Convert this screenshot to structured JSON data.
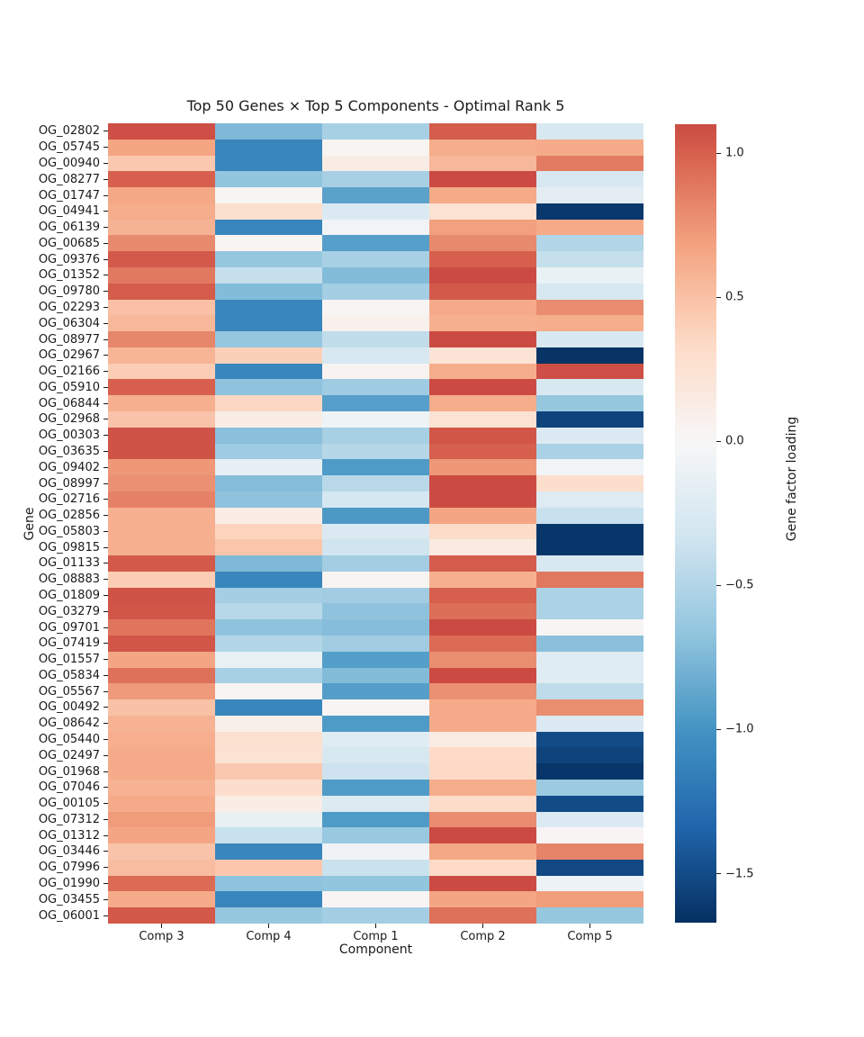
{
  "chart_data": {
    "type": "heatmap",
    "title": "Top 50 Genes × Top 5 Components - Optimal Rank 5",
    "xlabel": "Component",
    "ylabel": "Gene",
    "legend_position": "right-colorbar",
    "grid": false,
    "columns": [
      "Comp 3",
      "Comp 4",
      "Comp 1",
      "Comp 2",
      "Comp 5"
    ],
    "rows": [
      "OG_02802",
      "OG_05745",
      "OG_00940",
      "OG_08277",
      "OG_01747",
      "OG_04941",
      "OG_06139",
      "OG_00685",
      "OG_09376",
      "OG_01352",
      "OG_09780",
      "OG_02293",
      "OG_06304",
      "OG_08977",
      "OG_02967",
      "OG_02166",
      "OG_05910",
      "OG_06844",
      "OG_02968",
      "OG_00303",
      "OG_03635",
      "OG_09402",
      "OG_08997",
      "OG_02716",
      "OG_02856",
      "OG_05803",
      "OG_09815",
      "OG_01133",
      "OG_08883",
      "OG_01809",
      "OG_03279",
      "OG_09701",
      "OG_07419",
      "OG_01557",
      "OG_05834",
      "OG_05567",
      "OG_00492",
      "OG_08642",
      "OG_05440",
      "OG_02497",
      "OG_01968",
      "OG_07046",
      "OG_00105",
      "OG_07312",
      "OG_01312",
      "OG_03446",
      "OG_07996",
      "OG_01990",
      "OG_03455",
      "OG_06001"
    ],
    "values": [
      [
        1.08,
        -0.75,
        -0.55,
        1.02,
        -0.28
      ],
      [
        0.67,
        -1.1,
        0.04,
        0.62,
        0.63
      ],
      [
        0.45,
        -1.1,
        0.13,
        0.55,
        0.87
      ],
      [
        1.0,
        -0.67,
        -0.55,
        1.1,
        -0.27
      ],
      [
        0.65,
        0.04,
        -0.9,
        0.64,
        -0.18
      ],
      [
        0.62,
        0.28,
        -0.25,
        0.25,
        -1.62
      ],
      [
        0.58,
        -1.1,
        -0.05,
        0.69,
        0.64
      ],
      [
        0.8,
        0.04,
        -0.92,
        0.8,
        -0.5
      ],
      [
        1.03,
        -0.65,
        -0.55,
        1.0,
        -0.4
      ],
      [
        0.88,
        -0.4,
        -0.73,
        1.1,
        -0.12
      ],
      [
        1.02,
        -0.73,
        -0.57,
        1.03,
        -0.28
      ],
      [
        0.5,
        -1.1,
        0.03,
        0.63,
        0.79
      ],
      [
        0.55,
        -1.1,
        0.08,
        0.6,
        0.62
      ],
      [
        0.82,
        -0.65,
        -0.42,
        1.1,
        -0.26
      ],
      [
        0.57,
        0.4,
        -0.28,
        0.23,
        -1.65
      ],
      [
        0.42,
        -1.1,
        0.05,
        0.62,
        1.08
      ],
      [
        1.0,
        -0.68,
        -0.6,
        1.1,
        -0.27
      ],
      [
        0.6,
        0.36,
        -0.92,
        0.62,
        -0.65
      ],
      [
        0.48,
        0.12,
        -0.08,
        0.25,
        -1.55
      ],
      [
        1.06,
        -0.7,
        -0.55,
        1.05,
        -0.25
      ],
      [
        1.06,
        -0.6,
        -0.48,
        1.0,
        -0.54
      ],
      [
        0.73,
        -0.15,
        -0.95,
        0.73,
        -0.05
      ],
      [
        0.77,
        -0.72,
        -0.46,
        1.1,
        0.3
      ],
      [
        0.84,
        -0.68,
        -0.3,
        1.1,
        -0.22
      ],
      [
        0.6,
        0.12,
        -0.96,
        0.66,
        -0.38
      ],
      [
        0.6,
        0.38,
        -0.25,
        0.32,
        -1.63
      ],
      [
        0.6,
        0.47,
        -0.33,
        0.15,
        -1.63
      ],
      [
        1.03,
        -0.75,
        -0.58,
        1.02,
        -0.27
      ],
      [
        0.42,
        -1.1,
        0.04,
        0.6,
        0.89
      ],
      [
        1.06,
        -0.57,
        -0.59,
        1.0,
        -0.53
      ],
      [
        1.05,
        -0.47,
        -0.68,
        0.93,
        -0.53
      ],
      [
        0.9,
        -0.68,
        -0.72,
        1.1,
        0.02
      ],
      [
        1.05,
        -0.5,
        -0.59,
        0.95,
        -0.7
      ],
      [
        0.66,
        -0.12,
        -0.93,
        0.78,
        -0.2
      ],
      [
        0.92,
        -0.55,
        -0.73,
        1.1,
        -0.2
      ],
      [
        0.72,
        0.03,
        -0.93,
        0.77,
        -0.43
      ],
      [
        0.49,
        -1.1,
        0.03,
        0.63,
        0.78
      ],
      [
        0.59,
        0.1,
        -0.95,
        0.63,
        -0.25
      ],
      [
        0.61,
        0.27,
        -0.2,
        0.14,
        -1.5
      ],
      [
        0.63,
        0.25,
        -0.28,
        0.33,
        -1.55
      ],
      [
        0.63,
        0.45,
        -0.35,
        0.34,
        -1.63
      ],
      [
        0.59,
        0.3,
        -0.95,
        0.62,
        -0.62
      ],
      [
        0.63,
        0.12,
        -0.24,
        0.32,
        -1.5
      ],
      [
        0.71,
        -0.13,
        -0.95,
        0.79,
        -0.25
      ],
      [
        0.66,
        -0.38,
        -0.63,
        1.1,
        0.03
      ],
      [
        0.48,
        -1.1,
        -0.07,
        0.65,
        0.83
      ],
      [
        0.52,
        0.46,
        -0.37,
        0.33,
        -1.52
      ],
      [
        0.95,
        -0.68,
        -0.67,
        1.1,
        -0.1
      ],
      [
        0.63,
        -1.1,
        0.03,
        0.66,
        0.7
      ],
      [
        1.04,
        -0.65,
        -0.57,
        0.92,
        -0.65
      ]
    ],
    "colormap": {
      "name": "RdBu_r",
      "norm_min": -1.67,
      "norm_max": 1.67,
      "stops": [
        "#053061",
        "#2166ac",
        "#4393c3",
        "#92c5de",
        "#d1e5f0",
        "#f7f7f7",
        "#fddbc7",
        "#f4a582",
        "#d6604d",
        "#b2182b",
        "#67001f"
      ]
    },
    "colorbar": {
      "label": "Gene factor loading",
      "vmin": -1.67,
      "vmax": 1.1,
      "tick_values": [
        1.0,
        0.5,
        0.0,
        -0.5,
        -1.0,
        -1.5
      ],
      "tick_labels": [
        "1.0",
        "0.5",
        "0.0",
        "−0.5",
        "−1.0",
        "−1.5"
      ]
    }
  }
}
